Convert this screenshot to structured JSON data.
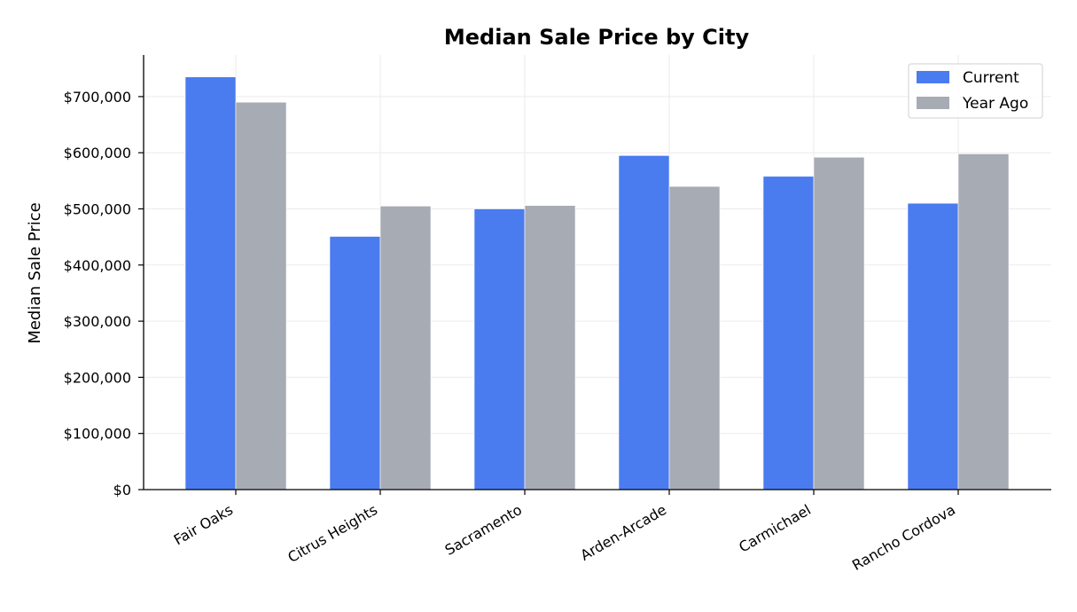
{
  "chart_data": {
    "type": "bar",
    "title": "Median Sale Price by City",
    "xlabel": "",
    "ylabel": "Median Sale Price",
    "ylim": [
      0,
      770000
    ],
    "yticks": [
      0,
      100000,
      200000,
      300000,
      400000,
      500000,
      600000,
      700000
    ],
    "ytick_labels": [
      "$0",
      "$100,000",
      "$200,000",
      "$300,000",
      "$400,000",
      "$500,000",
      "$600,000",
      "$700,000"
    ],
    "categories": [
      "Fair Oaks",
      "Citrus Heights",
      "Sacramento",
      "Arden-Arcade",
      "Carmichael",
      "Rancho Cordova"
    ],
    "series": [
      {
        "name": "Current",
        "color": "#4a7bef",
        "values": [
          735000,
          451000,
          500000,
          595000,
          558000,
          510000
        ]
      },
      {
        "name": "Year Ago",
        "color": "#a7abb4",
        "values": [
          690000,
          505000,
          506000,
          540000,
          592000,
          598000
        ]
      }
    ],
    "grid": true,
    "legend": "top-right"
  }
}
